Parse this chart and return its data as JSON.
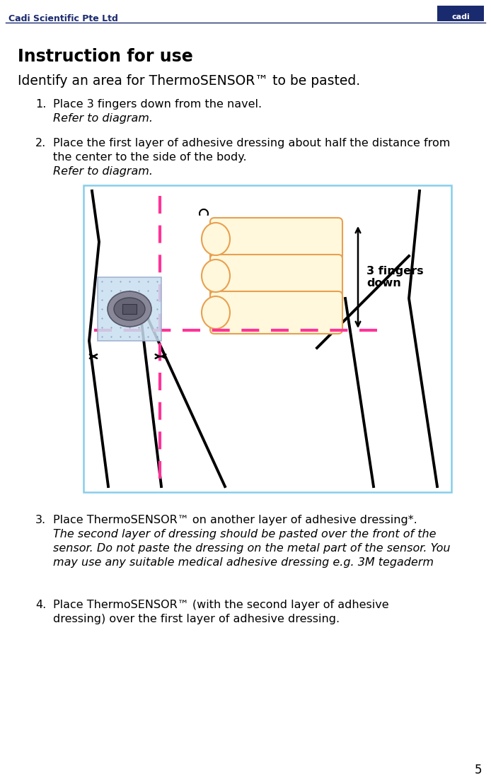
{
  "title": "Instruction for use",
  "subtitle": "Identify an area for ThermoSENSOR™ to be pasted.",
  "header_company": "Cadi Scientific Pte Ltd",
  "page_number": "5",
  "bg_color": "#ffffff",
  "text_color": "#000000",
  "header_color": "#1a2a6e",
  "box_border_color": "#87ceeb",
  "dashed_line_color": "#ff3399",
  "finger_fill": "#fff8dc",
  "finger_outline": "#e8a050",
  "sensor_bg": "#c8dff0",
  "sensor_border": "#99aacc",
  "metal_color": "#888899",
  "metal_inner": "#666677",
  "arrow_color": "#000000",
  "body_line_color": "#000000",
  "item1_bold": "Place 3 fingers down from the navel.",
  "item1_italic": "Refer to diagram.",
  "item2_bold_line1": "Place the first layer of adhesive dressing about half the distance from",
  "item2_bold_line2": "the center to the side of the body.",
  "item2_italic": "Refer to diagram.",
  "item3_bold": "Place ThermoSENSOR™ on another layer of adhesive dressing*.",
  "item3_italic_line1": "The second layer of dressing should be pasted over the front of the",
  "item3_italic_line2": "sensor. Do not paste the dressing on the metal part of the sensor. You",
  "item3_italic_line3": "may use any suitable medical adhesive dressing e.g. 3M tegaderm",
  "item4_bold_line1": "Place ThermoSENSOR™ (with the second layer of adhesive",
  "item4_bold_line2": "dressing) over the first layer of adhesive dressing.",
  "label_fingers": "3 fingers\ndown"
}
